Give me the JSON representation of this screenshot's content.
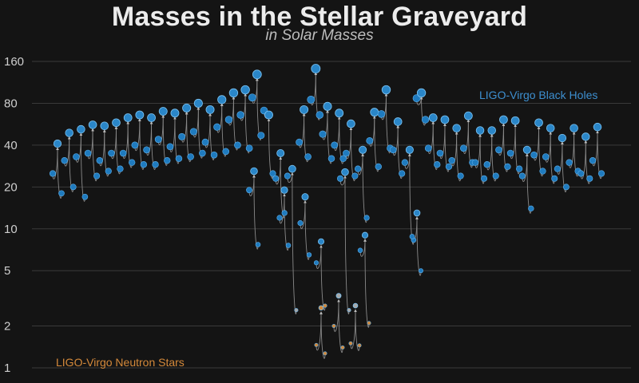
{
  "colors": {
    "background": "#141414",
    "black_hole": "#1f7bbf",
    "black_hole_remnant": "#2a86c8",
    "neutron_star": "#d4893a",
    "unknown": "#a8a8a8",
    "arrow": "#8a8a8a",
    "grid": "#3a3a3a"
  },
  "chart_data": {
    "type": "scatter",
    "title": "Masses in the Stellar Graveyard",
    "subtitle": "in Solar Masses",
    "yscale": "log",
    "ylim": [
      0.9,
      200
    ],
    "yticks": [
      1,
      2,
      5,
      10,
      20,
      40,
      80,
      160
    ],
    "grid": true,
    "series_labels": {
      "black_holes": "LIGO-Virgo Black Holes",
      "neutron_stars": "LIGO-Virgo Neutron Stars"
    },
    "events": [
      {
        "m1": 25,
        "m2": 18,
        "final": 41
      },
      {
        "m1": 31,
        "m2": 20,
        "final": 49
      },
      {
        "m1": 33,
        "m2": 17,
        "final": 52
      },
      {
        "m1": 35,
        "m2": 24,
        "final": 56
      },
      {
        "m1": 31,
        "m2": 26,
        "final": 55
      },
      {
        "m1": 35,
        "m2": 27,
        "final": 58
      },
      {
        "m1": 35,
        "m2": 30,
        "final": 63
      },
      {
        "m1": 40,
        "m2": 29,
        "final": 66
      },
      {
        "m1": 37,
        "m2": 29,
        "final": 63
      },
      {
        "m1": 44,
        "m2": 31,
        "final": 70
      },
      {
        "m1": 39,
        "m2": 32,
        "final": 68
      },
      {
        "m1": 46,
        "m2": 33,
        "final": 74
      },
      {
        "m1": 50,
        "m2": 35,
        "final": 80
      },
      {
        "m1": 42,
        "m2": 34,
        "final": 72
      },
      {
        "m1": 54,
        "m2": 36,
        "final": 85
      },
      {
        "m1": 61,
        "m2": 40,
        "final": 95
      },
      {
        "m1": 66,
        "m2": 38,
        "final": 100
      },
      {
        "m1": 88,
        "m2": 47,
        "final": 129
      },
      {
        "m1": 71,
        "m2": 25,
        "final": 66
      },
      {
        "m1": 23,
        "m2": 13,
        "final": 35
      },
      {
        "m1": 24,
        "m2": 2.6,
        "final": 27,
        "m2_unknown": true
      },
      {
        "m1": 42,
        "m2": 33,
        "final": 72
      },
      {
        "m1": 85,
        "m2": 66,
        "final": 142
      },
      {
        "m1": 48,
        "m2": 32,
        "final": 76
      },
      {
        "m1": 40,
        "m2": 32,
        "final": 68
      },
      {
        "m1": 35,
        "m2": 24,
        "final": 57
      },
      {
        "m1": 27,
        "m2": 12,
        "final": 37
      },
      {
        "m1": 43,
        "m2": 28,
        "final": 69
      },
      {
        "m1": 67,
        "m2": 38,
        "final": 100
      },
      {
        "m1": 37,
        "m2": 25,
        "final": 59
      },
      {
        "m1": 30,
        "m2": 8.3,
        "final": 37
      },
      {
        "m1": 87,
        "m2": 61,
        "final": 95
      },
      {
        "m1": 38,
        "m2": 29,
        "final": 63
      },
      {
        "m1": 35,
        "m2": 28,
        "final": 61
      },
      {
        "m1": 31,
        "m2": 24,
        "final": 53
      },
      {
        "m1": 38,
        "m2": 30,
        "final": 65
      },
      {
        "m1": 30,
        "m2": 23,
        "final": 51
      },
      {
        "m1": 29,
        "m2": 24,
        "final": 51
      },
      {
        "m1": 37,
        "m2": 28,
        "final": 61
      },
      {
        "m1": 35,
        "m2": 27,
        "final": 60
      },
      {
        "m1": 24,
        "m2": 14,
        "final": 37
      },
      {
        "m1": 34,
        "m2": 26,
        "final": 58
      },
      {
        "m1": 33,
        "m2": 23,
        "final": 53
      },
      {
        "m1": 27,
        "m2": 20,
        "final": 45
      },
      {
        "m1": 30,
        "m2": 26,
        "final": 53
      },
      {
        "m1": 25,
        "m2": 23,
        "final": 46
      },
      {
        "m1": 31,
        "m2": 25,
        "final": 54
      }
    ],
    "mass_gap_events": [
      {
        "m1": 19,
        "m2": 7.7,
        "final": 26
      },
      {
        "m1": 12,
        "m2": 7.6,
        "final": 19
      },
      {
        "m1": 11,
        "m2": 6.5,
        "final": 17
      },
      {
        "m1": 5.7,
        "m2": 2.8,
        "final": 8.1
      },
      {
        "m1": 7.0,
        "m2": 2.1,
        "final": 9.0
      },
      {
        "m1": 8.8,
        "m2": 5.0,
        "final": 13
      },
      {
        "m1": 23,
        "m2": 2.6,
        "final": 25.6,
        "m2_unknown": true
      }
    ],
    "neutron_star_events": [
      {
        "m1": 1.46,
        "m2": 1.27,
        "final": 2.7
      },
      {
        "m1": 2.0,
        "m2": 1.4,
        "final": 3.3,
        "final_unknown": true
      },
      {
        "m1": 1.5,
        "m2": 1.45,
        "final": 2.8,
        "final_unknown": true
      }
    ]
  }
}
